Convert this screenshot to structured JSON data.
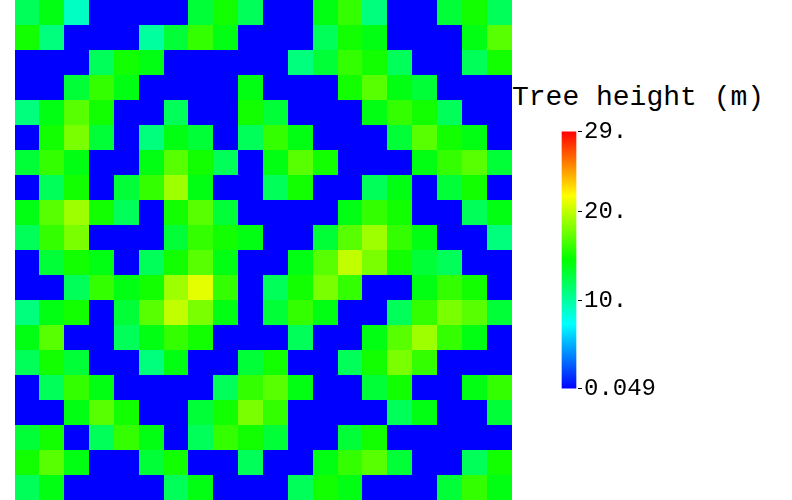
{
  "chart_data": {
    "type": "heatmap",
    "tick_labels": false,
    "cells": [
      [
        12,
        14,
        9,
        0.05,
        0.05,
        0.05,
        0.05,
        13,
        15,
        12,
        0.05,
        0.05,
        14,
        16,
        11,
        0.05,
        0.05,
        13,
        15,
        12
      ],
      [
        15,
        11,
        0.05,
        0.05,
        0.05,
        10,
        13,
        16,
        14,
        0.05,
        0.05,
        0.05,
        12,
        15,
        14,
        0.05,
        0.05,
        0.05,
        14,
        17
      ],
      [
        0.05,
        0.05,
        0.05,
        12,
        15,
        14,
        0.05,
        0.05,
        0.05,
        0.05,
        0.05,
        11,
        13,
        16,
        15,
        12,
        0.05,
        0.05,
        12,
        15
      ],
      [
        0.05,
        0.05,
        13,
        16,
        14,
        0.05,
        0.05,
        0.05,
        0.05,
        14,
        0.05,
        0.05,
        0.05,
        15,
        17,
        14,
        13,
        0.05,
        0.05,
        0.05
      ],
      [
        11,
        14,
        17,
        15,
        0.05,
        0.05,
        12,
        0.05,
        0.05,
        15,
        13,
        0.05,
        0.05,
        0.05,
        14,
        16,
        15,
        12,
        0.05,
        0.05
      ],
      [
        0.05,
        15,
        18,
        13,
        0.05,
        11,
        14,
        13,
        0.05,
        12,
        16,
        14,
        0.05,
        0.05,
        0.05,
        13,
        17,
        15,
        14,
        0.05
      ],
      [
        13,
        16,
        14,
        0.05,
        0.05,
        14,
        17,
        15,
        12,
        0.05,
        14,
        17,
        15,
        0.05,
        0.05,
        0.05,
        14,
        16,
        17,
        13
      ],
      [
        0.05,
        12,
        15,
        0.05,
        13,
        16,
        19,
        14,
        0.05,
        0.05,
        12,
        15,
        0.05,
        0.05,
        12,
        14,
        0.05,
        13,
        15,
        0.05
      ],
      [
        14,
        17,
        19,
        15,
        12,
        0.05,
        15,
        17,
        13,
        0.05,
        0.05,
        0.05,
        0.05,
        14,
        16,
        15,
        0.05,
        0.05,
        12,
        14
      ],
      [
        12,
        16,
        18,
        0.05,
        0.05,
        0.05,
        13,
        16,
        15,
        14,
        0.05,
        0.05,
        13,
        17,
        19,
        16,
        14,
        0.05,
        0.05,
        11
      ],
      [
        0.05,
        13,
        15,
        14,
        0.05,
        12,
        15,
        17,
        14,
        0.05,
        0.05,
        14,
        17,
        20,
        18,
        15,
        13,
        12,
        0.05,
        0.05
      ],
      [
        0.05,
        0.05,
        12,
        16,
        14,
        15,
        19,
        21,
        16,
        0.05,
        12,
        15,
        18,
        16,
        0.05,
        0.05,
        14,
        16,
        15,
        0.05
      ],
      [
        11,
        14,
        15,
        0.05,
        13,
        17,
        20,
        18,
        14,
        0.05,
        13,
        16,
        14,
        0.05,
        0.05,
        12,
        16,
        18,
        17,
        13
      ],
      [
        14,
        17,
        0.05,
        0.05,
        12,
        14,
        16,
        15,
        0.05,
        0.05,
        0.05,
        12,
        0.05,
        0.05,
        14,
        17,
        19,
        16,
        14,
        0.05
      ],
      [
        12,
        15,
        13,
        0.05,
        0.05,
        11,
        14,
        0.05,
        0.05,
        13,
        15,
        0.05,
        0.05,
        12,
        15,
        18,
        16,
        0.05,
        0.05,
        0.05
      ],
      [
        0.05,
        12,
        16,
        14,
        0.05,
        0.05,
        0.05,
        0.05,
        12,
        16,
        17,
        14,
        0.05,
        0.05,
        13,
        15,
        0.05,
        0.05,
        14,
        16
      ],
      [
        0.05,
        0.05,
        14,
        17,
        15,
        0.05,
        0.05,
        13,
        15,
        18,
        16,
        0.05,
        0.05,
        0.05,
        0.05,
        12,
        14,
        0.05,
        0.05,
        13
      ],
      [
        13,
        15,
        0.05,
        12,
        16,
        14,
        0.05,
        12,
        16,
        15,
        13,
        0.05,
        0.05,
        13,
        15,
        0.05,
        0.05,
        0.05,
        0.05,
        0.05
      ],
      [
        15,
        17,
        14,
        0.05,
        0.05,
        13,
        15,
        0.05,
        0.05,
        12,
        0.05,
        0.05,
        14,
        16,
        17,
        13,
        0.05,
        0.05,
        12,
        15
      ],
      [
        12,
        14,
        0.05,
        0.05,
        0.05,
        0.05,
        12,
        14,
        0.05,
        0.05,
        0.05,
        12,
        15,
        14,
        0.05,
        0.05,
        0.05,
        13,
        16,
        14
      ]
    ],
    "colorbar": {
      "label": "Tree height (m)",
      "lim": [
        0.049,
        29
      ],
      "ticks": [
        0.049,
        {
          "value": 10,
          "label": "10."
        },
        {
          "value": 20,
          "label": "20."
        },
        {
          "value": 29,
          "label": "29."
        }
      ]
    }
  }
}
